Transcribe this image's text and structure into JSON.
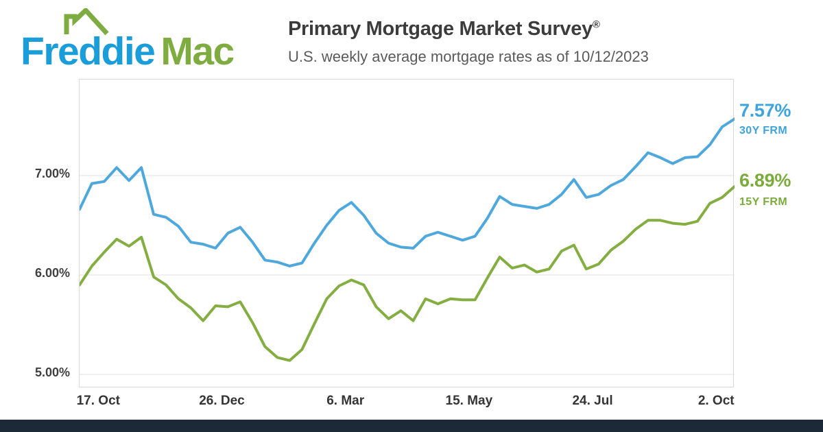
{
  "logo": {
    "part1": "Freddie",
    "part2": "Mac",
    "blue": "#1B9DD9",
    "green": "#7FAC41"
  },
  "header": {
    "title": "Primary Mortgage Market Survey",
    "registered_mark": "®",
    "subtitle": "U.S. weekly average mortgage rates as of 10/12/2023"
  },
  "chart_data": {
    "type": "line",
    "title": "U.S. weekly average mortgage rates as of 10/12/2023",
    "xlabel": "",
    "ylabel": "",
    "grid": true,
    "legend_position": "right-end-labels",
    "y_axis_range": [
      4.862,
      7.966
    ],
    "y_ticks": [
      {
        "label": "7.00%",
        "value": 7.0
      },
      {
        "label": "6.00%",
        "value": 6.0
      },
      {
        "label": "5.00%",
        "value": 5.0
      }
    ],
    "x_ticks": [
      {
        "label": "17. Oct",
        "week": 1.57
      },
      {
        "label": "26. Dec",
        "week": 11.57
      },
      {
        "label": "6. Mar",
        "week": 21.57
      },
      {
        "label": "15. May",
        "week": 31.57
      },
      {
        "label": "24. Jul",
        "week": 41.57
      },
      {
        "label": "2. Oct",
        "week": 51.57
      }
    ],
    "grid_color": "#E2E2E2",
    "series": [
      {
        "name": "30Y FRM",
        "color": "#4FA8DC",
        "end_label": "7.57%",
        "values": [
          6.66,
          6.92,
          6.94,
          7.08,
          6.95,
          7.08,
          6.61,
          6.58,
          6.49,
          6.33,
          6.31,
          6.27,
          6.42,
          6.48,
          6.33,
          6.15,
          6.13,
          6.09,
          6.12,
          6.32,
          6.5,
          6.65,
          6.73,
          6.6,
          6.42,
          6.32,
          6.28,
          6.27,
          6.39,
          6.43,
          6.39,
          6.35,
          6.39,
          6.57,
          6.79,
          6.71,
          6.69,
          6.67,
          6.71,
          6.81,
          6.96,
          6.78,
          6.81,
          6.9,
          6.96,
          7.09,
          7.23,
          7.18,
          7.12,
          7.18,
          7.19,
          7.31,
          7.49,
          7.57
        ]
      },
      {
        "name": "15Y FRM",
        "color": "#84AE41",
        "end_label": "6.89%",
        "values": [
          5.9,
          6.09,
          6.23,
          6.36,
          6.29,
          6.38,
          5.98,
          5.9,
          5.76,
          5.67,
          5.54,
          5.69,
          5.68,
          5.73,
          5.52,
          5.28,
          5.17,
          5.14,
          5.25,
          5.51,
          5.76,
          5.89,
          5.95,
          5.9,
          5.68,
          5.56,
          5.64,
          5.54,
          5.76,
          5.71,
          5.76,
          5.75,
          5.75,
          5.97,
          6.18,
          6.07,
          6.1,
          6.03,
          6.06,
          6.24,
          6.3,
          6.06,
          6.11,
          6.25,
          6.34,
          6.46,
          6.55,
          6.55,
          6.52,
          6.51,
          6.54,
          6.72,
          6.78,
          6.89
        ]
      }
    ]
  },
  "footer": {
    "bar_color": "#1C2A38"
  }
}
